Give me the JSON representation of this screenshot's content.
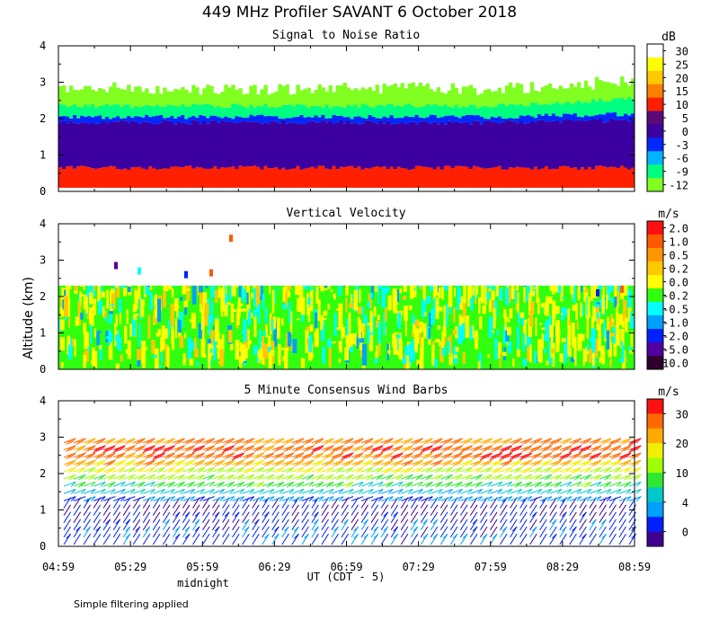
{
  "title": "449 MHz Profiler SAVANT  6 October 2018",
  "ylabel": "Altitude (km)",
  "xlabel": "UT  (CDT - 5)",
  "midnight_label": "midnight",
  "footnote": "Simple filtering applied",
  "x_ticks": [
    "04:59",
    "05:29",
    "05:59",
    "06:29",
    "06:59",
    "07:29",
    "07:59",
    "08:29",
    "08:59"
  ],
  "y_ticks": [
    "0",
    "1",
    "2",
    "3",
    "4"
  ],
  "chart_data": [
    {
      "type": "heatmap",
      "title": "Signal to Noise Ratio",
      "unit": "dB",
      "xlim": [
        "04:59",
        "08:59"
      ],
      "ylim": [
        0,
        4
      ],
      "colorbar": {
        "labels": [
          "30",
          "25",
          "20",
          "15",
          "10",
          "5",
          "0",
          "-3",
          "-6",
          "-9",
          "-12"
        ],
        "colors": [
          "#ffffff",
          "#ffff00",
          "#ffc800",
          "#ff8000",
          "#ff2000",
          "#5a0a78",
          "#3c00a0",
          "#0028ff",
          "#00b4ff",
          "#00ff80",
          "#80ff20"
        ]
      },
      "layers": [
        {
          "from_km": 0.1,
          "to_km": 0.7,
          "value_db": 10,
          "description": "strong return near surface"
        },
        {
          "from_km": 0.7,
          "to_km": 1.9,
          "value_db": 2
        },
        {
          "from_km": 1.9,
          "to_km": 2.1,
          "value_db": -3
        },
        {
          "from_km": 2.1,
          "to_km": 2.4,
          "value_db": -9
        },
        {
          "from_km": 2.4,
          "to_km": 3.0,
          "value_db": -12
        }
      ]
    },
    {
      "type": "heatmap",
      "title": "Vertical Velocity",
      "unit": "m/s",
      "xlim": [
        "04:59",
        "08:59"
      ],
      "ylim": [
        0,
        4
      ],
      "colorbar": {
        "labels": [
          "2.0",
          "1.0",
          "0.5",
          "0.2",
          "0.0",
          "-0.2",
          "-0.5",
          "-1.0",
          "-2.0",
          "-5.0",
          "-10.0"
        ],
        "colors": [
          "#ff1010",
          "#ff5a00",
          "#ff9600",
          "#ffc800",
          "#ffff00",
          "#30ff10",
          "#00ffff",
          "#00a0ff",
          "#0020ff",
          "#5000a0",
          "#300030"
        ]
      },
      "data_top_km": 2.3,
      "dominant_value_ms": -0.2
    },
    {
      "type": "wind_barbs",
      "title": "5 Minute Consensus Wind Barbs",
      "unit": "m/s",
      "xlim": [
        "04:59",
        "08:59"
      ],
      "ylim": [
        0,
        4
      ],
      "colorbar": {
        "labels": [
          "30",
          "20",
          "10",
          "4",
          "0"
        ],
        "colors": [
          "#ff1010",
          "#ff6a00",
          "#ffaa00",
          "#f0f000",
          "#a0ff00",
          "#30e830",
          "#00c8c8",
          "#00a0ff",
          "#0020ff",
          "#400090"
        ]
      },
      "speed_profile": [
        {
          "altitude_km": 0.3,
          "speed_ms": 4
        },
        {
          "altitude_km": 1.0,
          "speed_ms": 1
        },
        {
          "altitude_km": 1.6,
          "speed_ms": 12
        },
        {
          "altitude_km": 2.0,
          "speed_ms": 18
        },
        {
          "altitude_km": 2.5,
          "speed_ms": 28
        },
        {
          "altitude_km": 3.0,
          "speed_ms": 25
        }
      ]
    }
  ]
}
